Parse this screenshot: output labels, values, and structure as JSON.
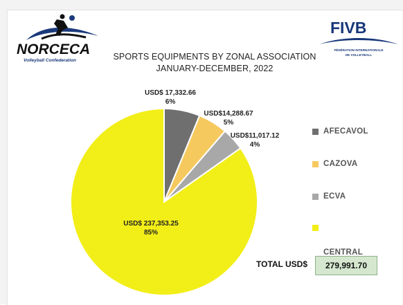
{
  "logos": {
    "norceca": {
      "name": "NORCECA",
      "tagline": "Volleyball Confederation"
    },
    "fivb": {
      "name": "FIVB",
      "tagline_1": "FÉDÉRATION INTERNATIONALE",
      "tagline_2": "DE VOLLEYBALL"
    }
  },
  "colors": {
    "afecavol": "#6f6f6f",
    "cazova": "#f6c95f",
    "ecva": "#a8a8a8",
    "central": "#f2ee18",
    "total_box": "#d5e8cf"
  },
  "chart_data": {
    "type": "pie",
    "title": "SPORTS EQUIPMENTS BY ZONAL ASSOCIATION",
    "subtitle": "JANUARY-DECEMBER, 2022",
    "start_angle_deg": 0,
    "direction": "clockwise",
    "legend_position": "right",
    "slices": [
      {
        "name": "AFECAVOL",
        "value": 17332.66,
        "value_label": "USD$ 17,332.66",
        "percent_label": "6%",
        "color": "#6f6f6f"
      },
      {
        "name": "CAZOVA",
        "value": 14288.67,
        "value_label": "USD$14,288.67",
        "percent_label": "5%",
        "color": "#f6c95f"
      },
      {
        "name": "ECVA",
        "value": 11017.12,
        "value_label": "USD$11,017.12",
        "percent_label": "4%",
        "color": "#a8a8a8"
      },
      {
        "name": "CENTRAL ZONE",
        "value": 237353.25,
        "value_label": "USD$ 237,353.25",
        "percent_label": "85%",
        "color": "#f2ee18"
      }
    ],
    "legend": [
      "AFECAVOL",
      "CAZOVA",
      "ECVA",
      "CENTRAL\nZONE"
    ],
    "total": {
      "label": "TOTAL USD$",
      "value": "279,991.70"
    }
  }
}
